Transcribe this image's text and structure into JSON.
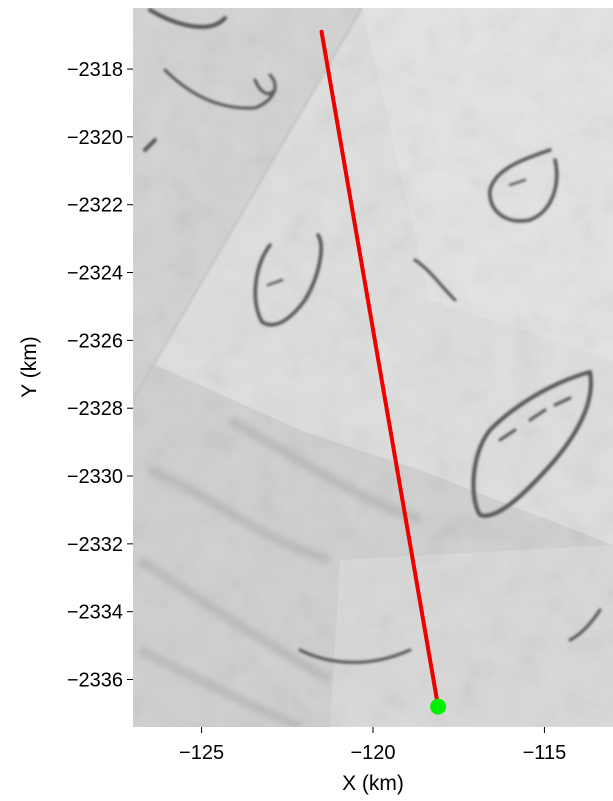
{
  "chart_data": {
    "type": "map",
    "xlabel": "X (km)",
    "ylabel": "Y (km)",
    "xlim": [
      -127,
      -113
    ],
    "ylim": [
      -2337.4,
      -2316.2
    ],
    "x_ticks": [
      {
        "value": -125,
        "label": "−125"
      },
      {
        "value": -120,
        "label": "−120"
      },
      {
        "value": -115,
        "label": "−115"
      }
    ],
    "y_ticks": [
      {
        "value": -2318,
        "label": "−2318"
      },
      {
        "value": -2320,
        "label": "−2320"
      },
      {
        "value": -2322,
        "label": "−2322"
      },
      {
        "value": -2324,
        "label": "−2324"
      },
      {
        "value": -2326,
        "label": "−2326"
      },
      {
        "value": -2328,
        "label": "−2328"
      },
      {
        "value": -2330,
        "label": "−2330"
      },
      {
        "value": -2332,
        "label": "−2332"
      },
      {
        "value": -2334,
        "label": "−2334"
      },
      {
        "value": -2336,
        "label": "−2336"
      }
    ],
    "background": "grayscale satellite imagery of ice surface with dark crevasse and lake features",
    "track": {
      "color": "#ee0000",
      "points": [
        {
          "x": -121.5,
          "y": -2316.9
        },
        {
          "x": -118.1,
          "y": -2336.8
        }
      ]
    },
    "marker": {
      "x": -118.1,
      "y": -2336.8,
      "color": "#00ee00",
      "shape": "circle"
    },
    "grid": false
  }
}
